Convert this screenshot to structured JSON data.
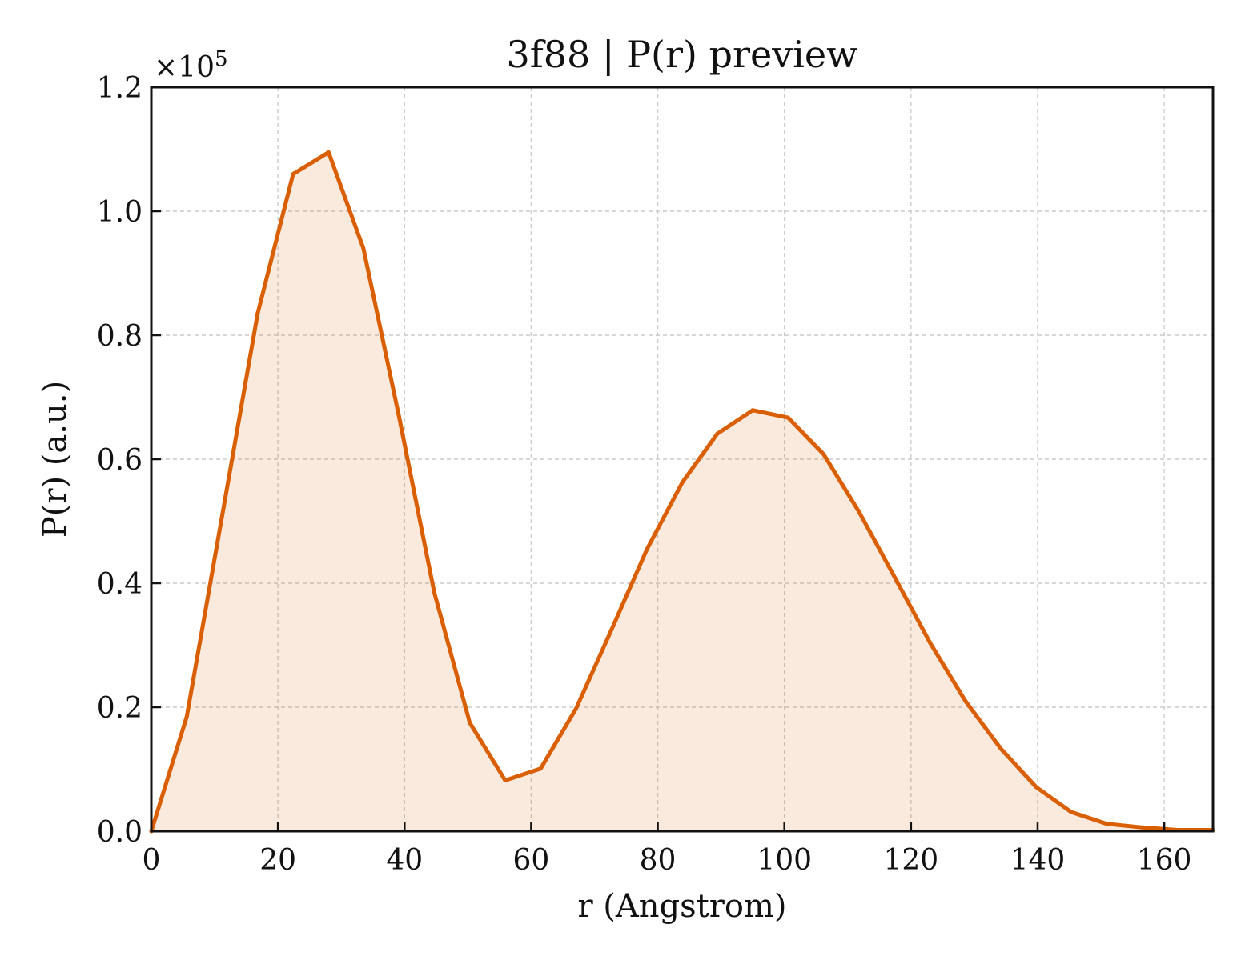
{
  "chart_data": {
    "type": "line",
    "title": "3f88 | P(r) preview",
    "xlabel": "r (Angstrom)",
    "ylabel": "P(r) (a.u.)",
    "y_exponent_base": "×10",
    "y_exponent_power": "5",
    "y_scale_factor": 100000,
    "xlim": [
      0,
      167.7
    ],
    "ylim": [
      0,
      1.2
    ],
    "x_ticks": [
      0,
      20,
      40,
      60,
      80,
      100,
      120,
      140,
      160
    ],
    "x_tick_labels": [
      "0",
      "20",
      "40",
      "60",
      "80",
      "100",
      "120",
      "140",
      "160"
    ],
    "y_ticks": [
      0,
      0.2,
      0.4,
      0.6,
      0.8,
      1.0,
      1.2
    ],
    "y_tick_labels": [
      "0.0",
      "0.2",
      "0.4",
      "0.6",
      "0.8",
      "1.0",
      "1.2"
    ],
    "grid": true,
    "legend": "none",
    "series": [
      {
        "color": "#d95f02",
        "fill_color": "#d95f02",
        "fill_opacity": 0.13,
        "x": [
          0,
          5.6,
          11.2,
          16.8,
          22.4,
          28.0,
          33.5,
          39.1,
          44.7,
          50.3,
          55.9,
          61.5,
          67.1,
          72.7,
          78.3,
          83.9,
          89.4,
          95.0,
          100.6,
          106.2,
          111.8,
          117.4,
          123.0,
          128.6,
          134.2,
          139.8,
          145.3,
          150.9,
          156.5,
          162.1,
          167.7
        ],
        "y": [
          0.0,
          0.185,
          0.51,
          0.835,
          1.06,
          1.095,
          0.94,
          0.67,
          0.385,
          0.175,
          0.082,
          0.101,
          0.198,
          0.325,
          0.455,
          0.563,
          0.641,
          0.679,
          0.667,
          0.608,
          0.515,
          0.41,
          0.304,
          0.21,
          0.133,
          0.071,
          0.031,
          0.012,
          0.006,
          0.002,
          0.002
        ]
      }
    ]
  }
}
